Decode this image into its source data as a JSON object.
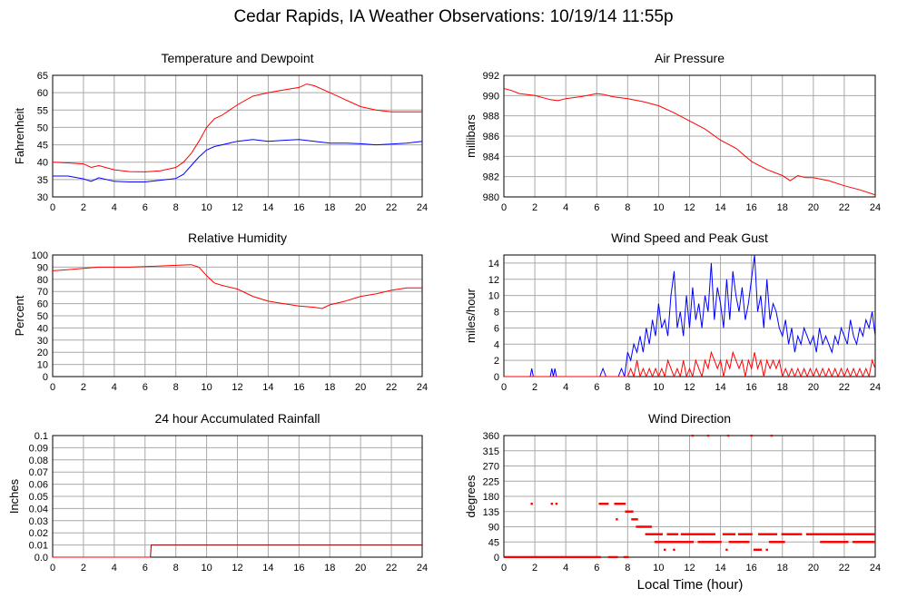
{
  "title": "Cedar Rapids, IA Weather Observations: 10/19/14 11:55p",
  "x_axis_title": "Local Time (hour)",
  "colors": {
    "red": "#ff0000",
    "blue": "#0000ff",
    "grid": "#a9a9a9"
  },
  "chart_data": [
    {
      "id": "temp",
      "type": "line",
      "title": "Temperature and Dewpoint",
      "xlabel": "",
      "ylabel": "Fahrenheit",
      "xlim": [
        0,
        24
      ],
      "ylim": [
        30,
        65
      ],
      "xticks": [
        0,
        2,
        4,
        6,
        8,
        10,
        12,
        14,
        16,
        18,
        20,
        22,
        24
      ],
      "yticks": [
        30,
        35,
        40,
        45,
        50,
        55,
        60,
        65
      ],
      "series": [
        {
          "color": "#ff0000",
          "x": [
            0,
            1,
            2,
            2.5,
            3,
            4,
            5,
            6,
            7,
            8,
            8.5,
            9,
            9.5,
            10,
            10.5,
            11,
            12,
            13,
            14,
            15,
            16,
            16.5,
            17,
            18,
            19,
            20,
            21,
            22,
            23,
            24
          ],
          "y": [
            40,
            39.8,
            39.5,
            38.5,
            39,
            37.8,
            37.3,
            37.2,
            37.5,
            38.5,
            40,
            42.5,
            46,
            50,
            52.5,
            53.5,
            56.5,
            59,
            60,
            60.8,
            61.5,
            62.5,
            62,
            60,
            58,
            56,
            55,
            54.5,
            54.5,
            54.5
          ]
        },
        {
          "color": "#0000ff",
          "x": [
            0,
            1,
            2,
            2.5,
            3,
            4,
            5,
            6,
            7,
            8,
            8.5,
            9,
            9.5,
            10,
            10.5,
            11,
            12,
            13,
            14,
            15,
            16,
            17,
            18,
            19,
            20,
            21,
            22,
            23,
            24
          ],
          "y": [
            36,
            36,
            35.2,
            34.5,
            35.5,
            34.5,
            34.3,
            34.3,
            34.8,
            35.3,
            36.5,
            39,
            41.5,
            43.5,
            44.5,
            45,
            46,
            46.5,
            46,
            46.3,
            46.5,
            46,
            45.5,
            45.5,
            45.3,
            45,
            45.2,
            45.5,
            46
          ]
        }
      ]
    },
    {
      "id": "pressure",
      "type": "line",
      "title": "Air Pressure",
      "xlabel": "",
      "ylabel": "millibars",
      "xlim": [
        0,
        24
      ],
      "ylim": [
        980,
        992
      ],
      "xticks": [
        0,
        2,
        4,
        6,
        8,
        10,
        12,
        14,
        16,
        18,
        20,
        22,
        24
      ],
      "yticks": [
        980,
        982,
        984,
        986,
        988,
        990,
        992
      ],
      "series": [
        {
          "color": "#ff0000",
          "x": [
            0,
            0.5,
            1,
            2,
            3,
            3.5,
            4,
            5,
            6,
            6.5,
            7,
            8,
            9,
            10,
            11,
            12,
            13,
            14,
            15,
            16,
            17,
            18,
            18.5,
            19,
            19.5,
            20,
            21,
            22,
            23,
            24
          ],
          "y": [
            990.7,
            990.5,
            990.2,
            990,
            989.6,
            989.5,
            989.7,
            989.9,
            990.2,
            990.1,
            989.9,
            989.7,
            989.4,
            989,
            988.3,
            987.5,
            986.7,
            985.6,
            984.8,
            983.5,
            982.7,
            982.1,
            981.6,
            982.1,
            981.9,
            981.9,
            981.6,
            981.1,
            980.7,
            980.2
          ]
        }
      ]
    },
    {
      "id": "humidity",
      "type": "line",
      "title": "Relative Humidity",
      "xlabel": "",
      "ylabel": "Percent",
      "xlim": [
        0,
        24
      ],
      "ylim": [
        0,
        100
      ],
      "xticks": [
        0,
        2,
        4,
        6,
        8,
        10,
        12,
        14,
        16,
        18,
        20,
        22,
        24
      ],
      "yticks": [
        0,
        10,
        20,
        30,
        40,
        50,
        60,
        70,
        80,
        90,
        100
      ],
      "series": [
        {
          "color": "#ff0000",
          "x": [
            0,
            1,
            2,
            3,
            4,
            5,
            6,
            7,
            8,
            9,
            9.5,
            10,
            10.5,
            11,
            12,
            13,
            14,
            15,
            16,
            17,
            17.5,
            18,
            19,
            20,
            21,
            22,
            23,
            24
          ],
          "y": [
            87,
            88,
            89,
            90,
            90,
            90,
            90.5,
            91,
            91.5,
            92,
            90,
            83,
            77,
            75,
            72,
            66,
            62,
            60,
            58,
            57,
            56,
            59,
            62,
            66,
            68,
            71,
            73,
            73
          ]
        }
      ]
    },
    {
      "id": "wind",
      "type": "line",
      "title": "Wind Speed and Peak Gust",
      "xlabel": "",
      "ylabel": "miles/hour",
      "xlim": [
        0,
        24
      ],
      "ylim": [
        0,
        15
      ],
      "xticks": [
        0,
        2,
        4,
        6,
        8,
        10,
        12,
        14,
        16,
        18,
        20,
        22,
        24
      ],
      "yticks": [
        0,
        2,
        4,
        6,
        8,
        10,
        12,
        14
      ],
      "series": [
        {
          "color": "#0000ff",
          "x": [
            0,
            1.7,
            1.8,
            1.9,
            3,
            3.1,
            3.2,
            3.3,
            3.4,
            6.2,
            6.4,
            6.6,
            7.4,
            7.6,
            7.8,
            8,
            8.2,
            8.4,
            8.6,
            8.8,
            9,
            9.2,
            9.4,
            9.6,
            9.8,
            10,
            10.2,
            10.4,
            10.6,
            10.8,
            11,
            11.2,
            11.4,
            11.6,
            11.8,
            12,
            12.2,
            12.4,
            12.6,
            12.8,
            13,
            13.2,
            13.4,
            13.6,
            13.8,
            14,
            14.2,
            14.4,
            14.6,
            14.8,
            15,
            15.2,
            15.4,
            15.6,
            15.8,
            16,
            16.2,
            16.4,
            16.6,
            16.8,
            17,
            17.2,
            17.4,
            17.6,
            17.8,
            18,
            18.2,
            18.4,
            18.6,
            18.8,
            19,
            19.2,
            19.4,
            19.6,
            19.8,
            20,
            20.2,
            20.4,
            20.6,
            20.8,
            21,
            21.2,
            21.4,
            21.6,
            21.8,
            22,
            22.2,
            22.4,
            22.6,
            22.8,
            23,
            23.2,
            23.4,
            23.6,
            23.8,
            24
          ],
          "y": [
            0,
            0,
            1,
            0,
            0,
            1,
            0,
            1,
            0,
            0,
            1,
            0,
            0,
            1,
            0,
            3,
            2,
            4,
            3,
            5,
            3,
            6,
            4,
            7,
            5,
            9,
            6,
            7,
            5,
            10,
            13,
            6,
            8,
            5,
            10,
            6,
            11,
            7,
            9,
            6,
            10,
            8,
            14,
            7,
            11,
            9,
            6,
            12,
            7,
            13,
            10,
            8,
            11,
            7,
            9,
            12,
            15,
            8,
            10,
            6,
            12,
            7,
            9,
            8,
            6,
            5,
            7,
            4,
            6,
            3,
            5,
            4,
            6,
            5,
            4,
            5,
            3,
            6,
            4,
            5,
            4,
            3,
            5,
            4,
            6,
            5,
            4,
            7,
            5,
            4,
            6,
            5,
            7,
            6,
            8,
            5
          ]
        },
        {
          "color": "#ff0000",
          "x": [
            0,
            8,
            8.2,
            8.4,
            8.6,
            8.8,
            9,
            9.2,
            9.4,
            9.6,
            9.8,
            10,
            10.2,
            10.4,
            10.6,
            10.8,
            11,
            11.2,
            11.4,
            11.6,
            11.8,
            12,
            12.2,
            12.4,
            12.6,
            12.8,
            13,
            13.2,
            13.4,
            13.6,
            13.8,
            14,
            14.2,
            14.4,
            14.6,
            14.8,
            15,
            15.2,
            15.4,
            15.6,
            15.8,
            16,
            16.2,
            16.4,
            16.6,
            16.8,
            17,
            17.2,
            17.4,
            17.6,
            17.8,
            18,
            18.2,
            18.4,
            18.6,
            18.8,
            19,
            19.2,
            19.4,
            19.6,
            19.8,
            20,
            20.2,
            20.4,
            20.6,
            20.8,
            21,
            21.2,
            21.4,
            21.6,
            21.8,
            22,
            22.2,
            22.4,
            22.6,
            22.8,
            23,
            23.2,
            23.4,
            23.6,
            23.8,
            24
          ],
          "y": [
            0,
            0,
            1,
            0,
            2,
            0,
            1,
            0,
            1,
            0,
            1,
            0,
            1,
            0,
            2,
            1,
            0,
            1,
            0,
            2,
            0,
            1,
            0,
            2,
            1,
            0,
            2,
            1,
            3,
            2,
            1,
            2,
            0,
            2,
            1,
            3,
            2,
            1,
            2,
            0,
            2,
            1,
            3,
            1,
            2,
            0,
            2,
            1,
            2,
            1,
            2,
            0,
            1,
            0,
            1,
            0,
            1,
            0,
            1,
            0,
            1,
            0,
            1,
            0,
            1,
            0,
            1,
            0,
            1,
            0,
            1,
            0,
            1,
            0,
            1,
            0,
            1,
            0,
            1,
            0,
            2,
            1
          ]
        }
      ]
    },
    {
      "id": "rain",
      "type": "line",
      "title": "24 hour Accumulated Rainfall",
      "xlabel": "",
      "ylabel": "Inches",
      "xlim": [
        0,
        24
      ],
      "ylim": [
        0,
        0.1
      ],
      "xticks": [
        0,
        2,
        4,
        6,
        8,
        10,
        12,
        14,
        16,
        18,
        20,
        22,
        24
      ],
      "yticks": [
        "0.0",
        "0.01",
        "0.02",
        "0.03",
        "0.04",
        "0.05",
        "0.06",
        "0.07",
        "0.08",
        "0.09",
        "0.1"
      ],
      "series": [
        {
          "color": "#ff0000",
          "x": [
            0,
            6.35
          ],
          "y": [
            0,
            0
          ]
        },
        {
          "color": "#8b0000",
          "x": [
            6.35,
            6.4,
            24
          ],
          "y": [
            0,
            0.01,
            0.01
          ]
        }
      ]
    },
    {
      "id": "winddir",
      "type": "scatter",
      "title": "Wind Direction",
      "xlabel": "Local Time (hour)",
      "ylabel": "degrees",
      "xlim": [
        0,
        24
      ],
      "ylim": [
        0,
        360
      ],
      "xticks": [
        0,
        2,
        4,
        6,
        8,
        10,
        12,
        14,
        16,
        18,
        20,
        22,
        24
      ],
      "yticks": [
        0,
        45,
        90,
        135,
        180,
        225,
        270,
        315,
        360
      ],
      "series": [
        {
          "color": "#ff0000",
          "runs": [
            {
              "y": 0,
              "from": 0,
              "to": 6.2
            },
            {
              "y": 0,
              "from": 6.8,
              "to": 7.3
            },
            {
              "y": 0,
              "from": 7.8,
              "to": 8.0
            },
            {
              "y": 158,
              "from": 6.2,
              "to": 6.7
            },
            {
              "y": 158,
              "from": 7.2,
              "to": 7.8
            },
            {
              "y": 135,
              "from": 7.9,
              "to": 8.3
            },
            {
              "y": 112,
              "from": 8.3,
              "to": 8.6
            },
            {
              "y": 90,
              "from": 8.6,
              "to": 9.5
            },
            {
              "y": 68,
              "from": 9.2,
              "to": 10.1
            },
            {
              "y": 68,
              "from": 10.6,
              "to": 11.2
            },
            {
              "y": 68,
              "from": 11.5,
              "to": 13.6
            },
            {
              "y": 68,
              "from": 14.2,
              "to": 14.9
            },
            {
              "y": 68,
              "from": 15.2,
              "to": 16.0
            },
            {
              "y": 68,
              "from": 16.5,
              "to": 17.6
            },
            {
              "y": 68,
              "from": 18.0,
              "to": 19.2
            },
            {
              "y": 68,
              "from": 19.6,
              "to": 24.0
            },
            {
              "y": 45,
              "from": 9.8,
              "to": 12.2
            },
            {
              "y": 45,
              "from": 12.6,
              "to": 14.0
            },
            {
              "y": 45,
              "from": 14.6,
              "to": 15.8
            },
            {
              "y": 45,
              "from": 17.2,
              "to": 18.1
            },
            {
              "y": 45,
              "from": 20.5,
              "to": 22.2
            },
            {
              "y": 45,
              "from": 22.6,
              "to": 24.0
            },
            {
              "y": 22,
              "from": 16.2,
              "to": 16.6
            }
          ],
          "points": [
            [
              1.8,
              158
            ],
            [
              3.1,
              158
            ],
            [
              3.4,
              158
            ],
            [
              7.3,
              112
            ],
            [
              10.4,
              22
            ],
            [
              11.0,
              22
            ],
            [
              14.4,
              22
            ],
            [
              17.0,
              22
            ],
            [
              12.2,
              360
            ],
            [
              13.2,
              360
            ],
            [
              14.5,
              360
            ],
            [
              16.0,
              360
            ],
            [
              17.3,
              360
            ],
            [
              9.9,
              45
            ],
            [
              10.2,
              68
            ]
          ]
        }
      ]
    }
  ]
}
